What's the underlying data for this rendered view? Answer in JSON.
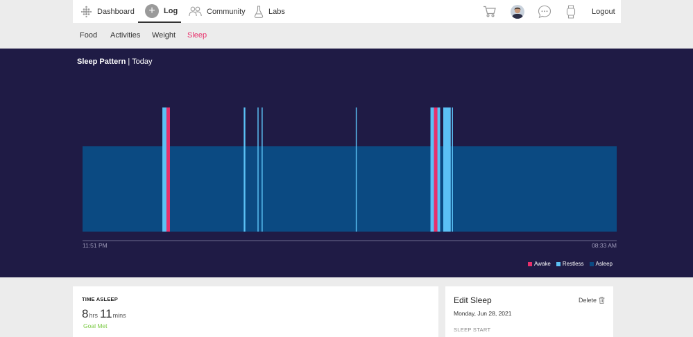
{
  "nav": {
    "dashboard": "Dashboard",
    "log": "Log",
    "community": "Community",
    "labs": "Labs",
    "logout": "Logout",
    "icons": [
      "dots-grid-icon",
      "plus-icon",
      "people-icon",
      "flask-icon",
      "cart-icon",
      "avatar",
      "chat-icon",
      "watch-icon"
    ]
  },
  "subnav": {
    "food": "Food",
    "activities": "Activities",
    "weight": "Weight",
    "sleep": "Sleep"
  },
  "chart": {
    "title": "Sleep Pattern",
    "subtitle": "| Today",
    "start_label": "11:51 PM",
    "end_label": "08:33 AM"
  },
  "chart_data": {
    "type": "sleep-stages",
    "title": "Sleep Pattern",
    "x": {
      "start": "11:51 PM",
      "end": "08:33 AM",
      "total_minutes": 522
    },
    "legend": [
      "Awake",
      "Restless",
      "Asleep"
    ],
    "colors": {
      "Awake": "#e8306b",
      "Restless": "#5bc1f5",
      "Asleep": "#0b4a82"
    },
    "baseline_stage": "Asleep",
    "events": [
      {
        "stage": "Restless",
        "start_min": 78.0,
        "duration_min": 4.0
      },
      {
        "stage": "Awake",
        "start_min": 82.0,
        "duration_min": 3.4
      },
      {
        "stage": "Restless",
        "start_min": 157.5,
        "duration_min": 1.6
      },
      {
        "stage": "Restless",
        "start_min": 171.0,
        "duration_min": 1.0
      },
      {
        "stage": "Restless",
        "start_min": 175.0,
        "duration_min": 1.0
      },
      {
        "stage": "Restless",
        "start_min": 267.0,
        "duration_min": 1.0
      },
      {
        "stage": "Restless",
        "start_min": 340.0,
        "duration_min": 3.4
      },
      {
        "stage": "Awake",
        "start_min": 343.4,
        "duration_min": 3.4
      },
      {
        "stage": "Restless",
        "start_min": 346.8,
        "duration_min": 2.7
      },
      {
        "stage": "Restless",
        "start_min": 352.5,
        "duration_min": 7.3
      },
      {
        "stage": "Restless",
        "start_min": 361.0,
        "duration_min": 1.0
      }
    ]
  },
  "legend": {
    "awake": "Awake",
    "restless": "Restless",
    "asleep": "Asleep"
  },
  "time_asleep": {
    "heading": "TIME ASLEEP",
    "hours": "8",
    "hours_unit": "hrs",
    "minutes": "11",
    "minutes_unit": "mins",
    "goal": "Goal Met"
  },
  "edit_sleep": {
    "title": "Edit Sleep",
    "delete": "Delete",
    "date": "Monday, Jun 28, 2021",
    "start_label": "SLEEP START"
  }
}
